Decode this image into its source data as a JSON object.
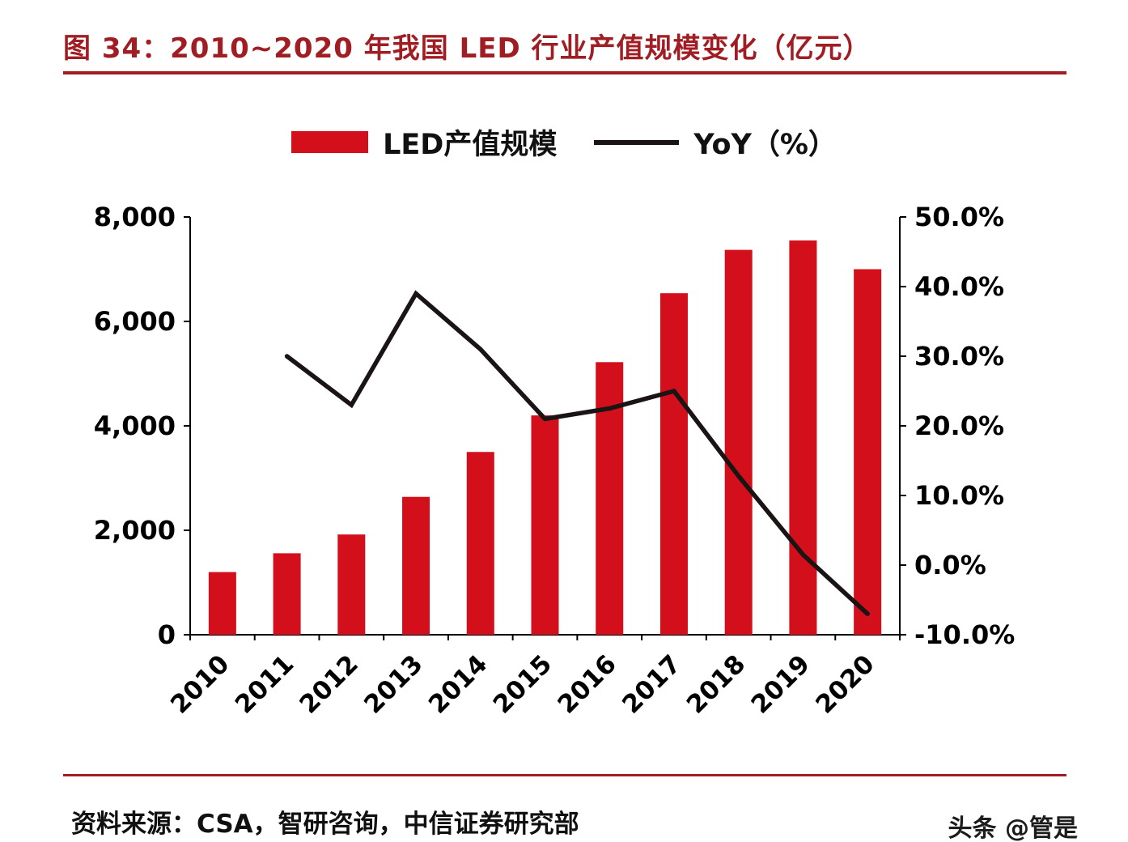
{
  "header": {
    "title": "图 34：2010~2020 年我国 LED 行业产值规模变化（亿元）"
  },
  "legend": {
    "bar_label": "LED产值规模",
    "line_label": "YoY（%）"
  },
  "footer": {
    "source": "资料来源：CSA，智研咨询，中信证券研究部",
    "watermark": "头条 @管是"
  },
  "colors": {
    "bar": "#d20f1a",
    "line": "#1a1414",
    "title": "#a01e23",
    "rule": "#a01e23",
    "axis": "#000000",
    "axis_text": "#000000"
  },
  "chart_data": {
    "type": "bar",
    "title": "2010~2020 年我国 LED 行业产值规模变化（亿元）",
    "categories": [
      "2010",
      "2011",
      "2012",
      "2013",
      "2014",
      "2015",
      "2016",
      "2017",
      "2018",
      "2019",
      "2020"
    ],
    "series": [
      {
        "name": "LED产值规模",
        "type": "bar",
        "axis": "left",
        "values": [
          1200,
          1560,
          1920,
          2640,
          3500,
          4200,
          5220,
          6540,
          7370,
          7550,
          7000
        ]
      },
      {
        "name": "YoY（%）",
        "type": "line",
        "axis": "right",
        "values": [
          null,
          30.0,
          23.0,
          39.0,
          31.0,
          21.0,
          22.5,
          25.0,
          12.8,
          1.5,
          -7.0
        ]
      }
    ],
    "left_axis": {
      "min": 0,
      "max": 8000,
      "tick_values": [
        0,
        2000,
        4000,
        6000,
        8000
      ],
      "tick_labels": [
        "0",
        "2,000",
        "4,000",
        "6,000",
        "8,000"
      ]
    },
    "right_axis": {
      "min": -10,
      "max": 50,
      "tick_values": [
        -10,
        0,
        10,
        20,
        30,
        40,
        50
      ],
      "tick_labels": [
        "-10.0%",
        "0.0%",
        "10.0%",
        "20.0%",
        "30.0%",
        "40.0%",
        "50.0%"
      ]
    },
    "xlabel": "",
    "ylabel_left": "",
    "ylabel_right": "",
    "grid": false,
    "legend_position": "top"
  }
}
